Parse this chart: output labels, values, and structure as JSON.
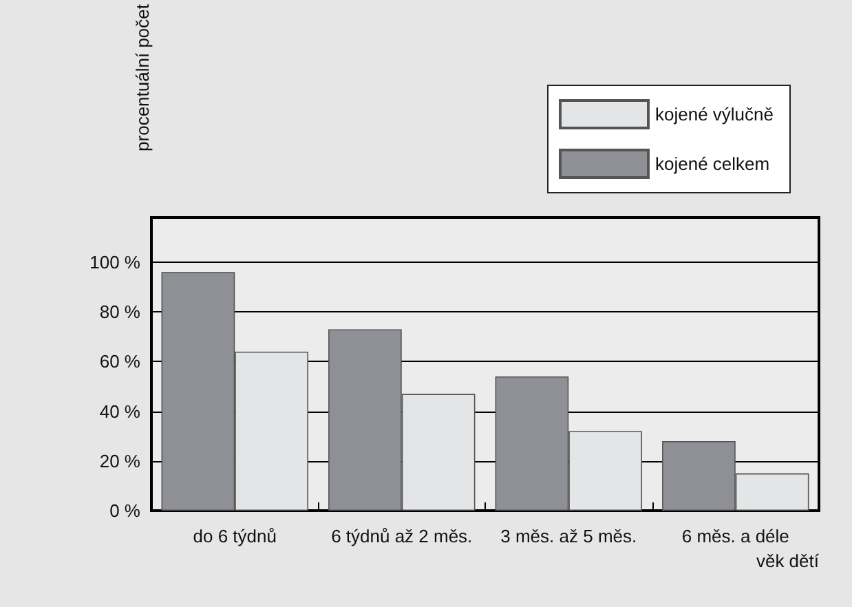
{
  "chart_data": {
    "type": "bar",
    "xlabel": "věk dětí",
    "ylabel": "procentuální počet",
    "categories": [
      "do 6 týdnů",
      "6 týdnů až 2 měs.",
      "3 měs. až 5 měs.",
      "6 měs. a déle"
    ],
    "series": [
      {
        "name": "kojené celkem",
        "color": "#8e9095",
        "values": [
          96,
          73,
          54,
          28
        ]
      },
      {
        "name": "kojené výlučně",
        "color": "#e4e5e7",
        "values": [
          64,
          47,
          32,
          15
        ]
      }
    ],
    "ylim": [
      0,
      118
    ],
    "yticks": [
      {
        "value": 0,
        "label": "0 %"
      },
      {
        "value": 20,
        "label": "20 %"
      },
      {
        "value": 40,
        "label": "40 %"
      },
      {
        "value": 60,
        "label": "60 %"
      },
      {
        "value": 80,
        "label": "80 %"
      },
      {
        "value": 100,
        "label": "100 %"
      }
    ],
    "grid": "y",
    "legend": "top right"
  }
}
